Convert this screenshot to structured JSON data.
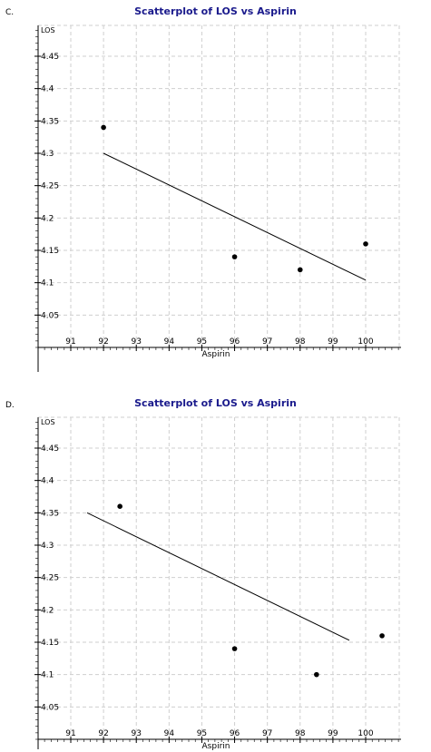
{
  "panels": [
    {
      "letter": "C.",
      "title": "Scatterplot of LOS vs Aspirin"
    },
    {
      "letter": "D.",
      "title": "Scatterplot of LOS vs Aspirin"
    }
  ],
  "chart_data": [
    {
      "type": "scatter",
      "title": "Scatterplot of LOS vs Aspirin",
      "xlabel": "Aspirin",
      "ylabel": "LOS",
      "x_ticks": [
        91,
        92,
        93,
        94,
        95,
        96,
        97,
        98,
        99,
        100
      ],
      "y_ticks": [
        4.05,
        4.1,
        4.15,
        4.2,
        4.25,
        4.3,
        4.35,
        4.4,
        4.45
      ],
      "xlim": [
        90,
        101
      ],
      "ylim": [
        4.0,
        4.5
      ],
      "grid": true,
      "points": [
        {
          "x": 92,
          "y": 4.34
        },
        {
          "x": 96,
          "y": 4.14
        },
        {
          "x": 98,
          "y": 4.12
        },
        {
          "x": 100,
          "y": 4.16
        }
      ],
      "fit_line": {
        "x1": 92,
        "y1": 4.3,
        "x2": 100,
        "y2": 4.104
      }
    },
    {
      "type": "scatter",
      "title": "Scatterplot of LOS vs Aspirin",
      "xlabel": "Aspirin",
      "ylabel": "LOS",
      "x_ticks": [
        91,
        92,
        93,
        94,
        95,
        96,
        97,
        98,
        99,
        100
      ],
      "y_ticks": [
        4.05,
        4.1,
        4.15,
        4.2,
        4.25,
        4.3,
        4.35,
        4.4,
        4.45
      ],
      "xlim": [
        90,
        101
      ],
      "ylim": [
        4.0,
        4.5
      ],
      "grid": true,
      "points": [
        {
          "x": 92.5,
          "y": 4.36
        },
        {
          "x": 96,
          "y": 4.14
        },
        {
          "x": 98.5,
          "y": 4.1
        },
        {
          "x": 100.5,
          "y": 4.16
        }
      ],
      "fit_line": {
        "x1": 91.5,
        "y1": 4.35,
        "x2": 99.5,
        "y2": 4.153
      }
    }
  ]
}
